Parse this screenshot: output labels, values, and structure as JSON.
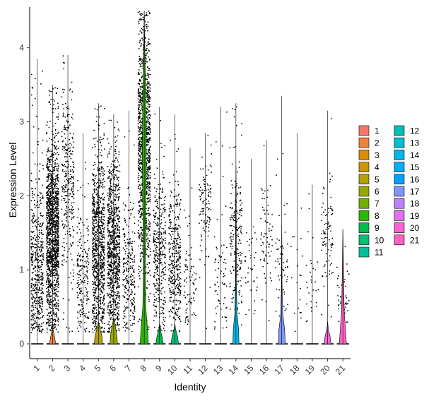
{
  "chart_data": {
    "type": "violin",
    "title": "",
    "xlabel": "Identity",
    "ylabel": "Expression Level",
    "ylim": [
      -0.2,
      4.55
    ],
    "yticks": [
      0,
      1,
      2,
      3,
      4
    ],
    "jitter_points": true,
    "grid": false,
    "legend_position": "right",
    "legend_columns": 2,
    "categories": [
      "1",
      "2",
      "3",
      "4",
      "5",
      "6",
      "7",
      "8",
      "9",
      "10",
      "11",
      "12",
      "13",
      "14",
      "15",
      "16",
      "17",
      "18",
      "19",
      "20",
      "21"
    ],
    "series": [
      {
        "identity": "1",
        "color": "#F8766D",
        "max": 3.85,
        "n_points": 500,
        "spread": 0.3,
        "center": 1.0,
        "violin": []
      },
      {
        "identity": "2",
        "color": "#EC823C",
        "max": 3.5,
        "n_points": 1400,
        "spread": 0.36,
        "center": 1.5,
        "violin": [
          [
            0,
            0.42
          ],
          [
            0.1,
            0.26
          ],
          [
            0.2,
            0.06
          ],
          [
            0.3,
            0.0
          ]
        ]
      },
      {
        "identity": "3",
        "color": "#DD8D00",
        "max": 3.9,
        "n_points": 300,
        "spread": 0.28,
        "center": 2.2,
        "violin": []
      },
      {
        "identity": "4",
        "color": "#CA9700",
        "max": 2.85,
        "n_points": 200,
        "spread": 0.3,
        "center": 0.9,
        "violin": []
      },
      {
        "identity": "5",
        "color": "#B3A000",
        "max": 3.25,
        "n_points": 900,
        "spread": 0.38,
        "center": 1.3,
        "violin": [
          [
            0,
            0.55
          ],
          [
            0.1,
            0.48
          ],
          [
            0.2,
            0.22
          ],
          [
            0.3,
            0.0
          ]
        ]
      },
      {
        "identity": "6",
        "color": "#97A900",
        "max": 3.1,
        "n_points": 900,
        "spread": 0.38,
        "center": 1.3,
        "violin": [
          [
            0,
            0.5
          ],
          [
            0.1,
            0.45
          ],
          [
            0.25,
            0.2
          ],
          [
            0.35,
            0.0
          ]
        ]
      },
      {
        "identity": "7",
        "color": "#71B000",
        "max": 3.15,
        "n_points": 250,
        "spread": 0.3,
        "center": 1.0,
        "violin": []
      },
      {
        "identity": "8",
        "color": "#2FB600",
        "max": 4.5,
        "n_points": 1100,
        "spread": 0.38,
        "center": 2.7,
        "violin": [
          [
            0,
            0.55
          ],
          [
            0.2,
            0.45
          ],
          [
            0.5,
            0.2
          ],
          [
            1.0,
            0.12
          ],
          [
            1.5,
            0.16
          ],
          [
            2.0,
            0.22
          ],
          [
            2.5,
            0.26
          ],
          [
            3.0,
            0.24
          ],
          [
            3.5,
            0.16
          ],
          [
            4.0,
            0.08
          ],
          [
            4.3,
            0.02
          ],
          [
            4.5,
            0.0
          ]
        ]
      },
      {
        "identity": "9",
        "color": "#00BB4B",
        "max": 3.2,
        "n_points": 350,
        "spread": 0.3,
        "center": 1.2,
        "violin": [
          [
            0,
            0.5
          ],
          [
            0.1,
            0.35
          ],
          [
            0.2,
            0.08
          ],
          [
            0.28,
            0.0
          ]
        ]
      },
      {
        "identity": "10",
        "color": "#00BF76",
        "max": 3.1,
        "n_points": 350,
        "spread": 0.3,
        "center": 1.2,
        "violin": [
          [
            0,
            0.5
          ],
          [
            0.1,
            0.38
          ],
          [
            0.2,
            0.1
          ],
          [
            0.28,
            0.0
          ]
        ]
      },
      {
        "identity": "11",
        "color": "#00C098",
        "max": 2.65,
        "n_points": 80,
        "spread": 0.25,
        "center": 0.8,
        "violin": []
      },
      {
        "identity": "12",
        "color": "#00C0B7",
        "max": 2.85,
        "n_points": 110,
        "spread": 0.25,
        "center": 1.8,
        "violin": []
      },
      {
        "identity": "13",
        "color": "#00BDD1",
        "max": 3.2,
        "n_points": 70,
        "spread": 0.25,
        "center": 0.8,
        "violin": []
      },
      {
        "identity": "14",
        "color": "#00B7E8",
        "max": 3.25,
        "n_points": 200,
        "spread": 0.28,
        "center": 1.4,
        "violin": [
          [
            0,
            0.42
          ],
          [
            0.2,
            0.36
          ],
          [
            0.4,
            0.16
          ],
          [
            0.8,
            0.06
          ],
          [
            1.2,
            0.05
          ],
          [
            1.6,
            0.04
          ],
          [
            2.0,
            0.03
          ],
          [
            2.4,
            0.0
          ]
        ]
      },
      {
        "identity": "15",
        "color": "#00AEFA",
        "max": 2.5,
        "n_points": 40,
        "spread": 0.25,
        "center": 1.0,
        "violin": []
      },
      {
        "identity": "16",
        "color": "#00A2FF",
        "max": 2.75,
        "n_points": 70,
        "spread": 0.25,
        "center": 1.5,
        "violin": []
      },
      {
        "identity": "17",
        "color": "#7F96FF",
        "max": 3.35,
        "n_points": 60,
        "spread": 0.25,
        "center": 1.0,
        "violin": [
          [
            0,
            0.48
          ],
          [
            0.2,
            0.38
          ],
          [
            0.4,
            0.14
          ],
          [
            0.8,
            0.04
          ],
          [
            1.2,
            0.03
          ],
          [
            1.6,
            0.0
          ]
        ]
      },
      {
        "identity": "18",
        "color": "#BB83FF",
        "max": 2.85,
        "n_points": 20,
        "spread": 0.25,
        "center": 1.0,
        "violin": []
      },
      {
        "identity": "19",
        "color": "#E371F4",
        "max": 2.15,
        "n_points": 30,
        "spread": 0.25,
        "center": 0.8,
        "violin": []
      },
      {
        "identity": "20",
        "color": "#FA62D4",
        "max": 3.15,
        "n_points": 90,
        "spread": 0.25,
        "center": 1.5,
        "violin": [
          [
            0,
            0.46
          ],
          [
            0.1,
            0.34
          ],
          [
            0.2,
            0.1
          ],
          [
            0.3,
            0.0
          ]
        ]
      },
      {
        "identity": "21",
        "color": "#FF61C3",
        "max": 1.55,
        "n_points": 50,
        "spread": 0.25,
        "center": 0.6,
        "violin": [
          [
            0,
            0.48
          ],
          [
            0.2,
            0.36
          ],
          [
            0.4,
            0.2
          ],
          [
            0.7,
            0.12
          ],
          [
            1.0,
            0.08
          ],
          [
            1.3,
            0.04
          ],
          [
            1.55,
            0.0
          ]
        ]
      }
    ]
  }
}
